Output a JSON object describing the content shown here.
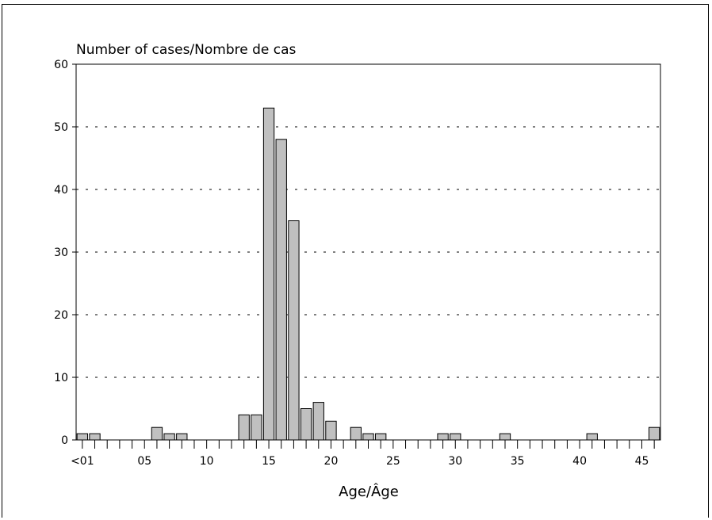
{
  "chart_data": {
    "type": "bar",
    "title": "",
    "ylabel": "Number of cases/Nombre de cas",
    "xlabel": "Age/Âge",
    "ylim": [
      0,
      60
    ],
    "yticks": [
      0,
      10,
      20,
      30,
      40,
      50,
      60
    ],
    "grid": "horizontal dashed",
    "categories": [
      0,
      1,
      2,
      3,
      4,
      5,
      6,
      7,
      8,
      9,
      10,
      11,
      12,
      13,
      14,
      15,
      16,
      17,
      18,
      19,
      20,
      21,
      22,
      23,
      24,
      25,
      26,
      27,
      28,
      29,
      30,
      31,
      32,
      33,
      34,
      35,
      36,
      37,
      38,
      39,
      40,
      41,
      42,
      43,
      44,
      45,
      46
    ],
    "values": [
      1,
      1,
      0,
      0,
      0,
      0,
      2,
      1,
      1,
      0,
      0,
      0,
      0,
      4,
      4,
      53,
      48,
      35,
      5,
      6,
      3,
      0,
      2,
      1,
      1,
      0,
      0,
      0,
      0,
      1,
      1,
      0,
      0,
      0,
      1,
      0,
      0,
      0,
      0,
      0,
      0,
      1,
      0,
      0,
      0,
      0,
      2
    ],
    "xtick_labels": [
      {
        "at": 0,
        "label": "<01"
      },
      {
        "at": 5,
        "label": "05"
      },
      {
        "at": 10,
        "label": "10"
      },
      {
        "at": 15,
        "label": "15"
      },
      {
        "at": 20,
        "label": "20"
      },
      {
        "at": 25,
        "label": "25"
      },
      {
        "at": 30,
        "label": "30"
      },
      {
        "at": 35,
        "label": "35"
      },
      {
        "at": 40,
        "label": "40"
      },
      {
        "at": 45,
        "label": "45"
      }
    ],
    "bar_color": "#c0c0c0",
    "bar_edge_color": "#000000"
  }
}
